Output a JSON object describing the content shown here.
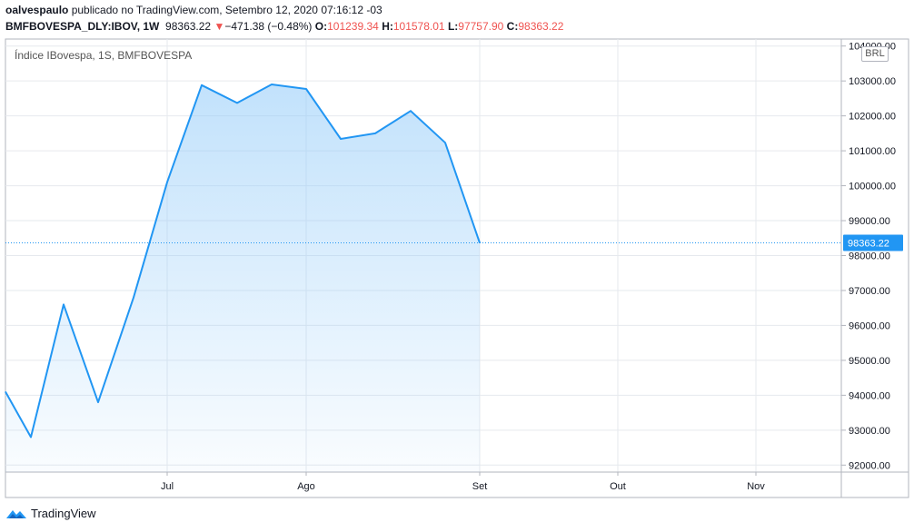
{
  "header": {
    "user": "oalvespaulo",
    "published": " publicado no TradingView.com, Setembro 12, 2020 07:16:12 -03",
    "symbol": "BMFBOVESPA_DLY:IBOV, 1W",
    "last": "98363.22",
    "arrow": "▼",
    "change": "−471.38 (−0.48%)",
    "o_label": "O:",
    "o_value": "101239.34",
    "h_label": "H:",
    "h_value": "101578.01",
    "l_label": "L:",
    "l_value": "97757.90",
    "c_label": "C:",
    "c_value": "98363.22"
  },
  "legend": "Índice IBovespa, 1S, BMFBOVESPA",
  "currency": "BRL",
  "last_price_label": "98363.22",
  "footer": "TradingView",
  "colors": {
    "line": "#2196f3",
    "fill": "#90caf9",
    "down": "#ef5350",
    "grid": "#e6e9ee"
  },
  "chart_data": {
    "type": "area",
    "series": [
      {
        "values": [
          94100,
          92800,
          96600,
          93800,
          96800,
          100100,
          102880,
          102370,
          102900,
          102770,
          101340,
          101500,
          102140,
          101230,
          98363.22
        ]
      }
    ],
    "y_ticks": [
      "104000.00",
      "103000.00",
      "102000.00",
      "101000.00",
      "100000.00",
      "99000.00",
      "98000.00",
      "97000.00",
      "96000.00",
      "95000.00",
      "94000.00",
      "93000.00",
      "92000.00"
    ],
    "x_ticks": [
      "Jul",
      "Ago",
      "Set",
      "Out",
      "Nov"
    ],
    "ylim": [
      91800,
      104200
    ],
    "grid": true,
    "last_value": 98363.22
  }
}
